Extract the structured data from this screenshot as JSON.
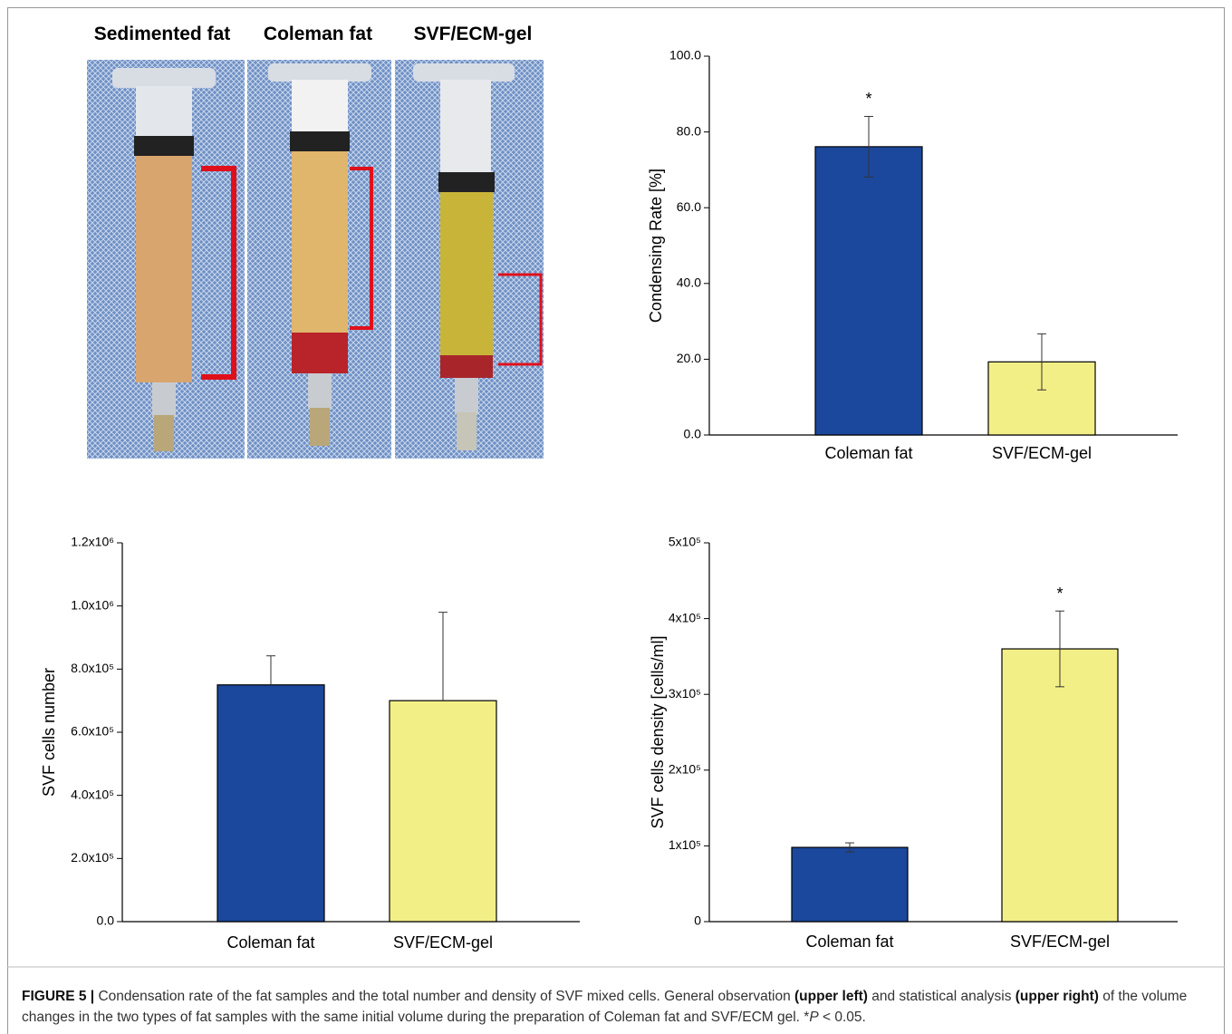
{
  "photo": {
    "labels": [
      "Sedimented fat",
      "Coleman fat",
      "SVF/ECM-gel"
    ]
  },
  "chart_data": [
    {
      "type": "bar",
      "ylabel": "Condensing Rate [%]",
      "categories": [
        "Coleman fat",
        "SVF/ECM-gel"
      ],
      "values": [
        76.1,
        19.3
      ],
      "errors": [
        8.0,
        7.4
      ],
      "error_direction": "both",
      "colors": [
        "#1b489c",
        "#f3ef87"
      ],
      "markers": [
        "*",
        null
      ],
      "ylim": [
        0,
        100
      ],
      "yticks": [
        {
          "value": 0,
          "label": "0.0"
        },
        {
          "value": 20,
          "label": "20.0"
        },
        {
          "value": 40,
          "label": "40.0"
        },
        {
          "value": 60,
          "label": "60.0"
        },
        {
          "value": 80,
          "label": "80.0"
        },
        {
          "value": 100,
          "label": "100.0"
        }
      ]
    },
    {
      "type": "bar",
      "ylabel": "SVF cells number",
      "categories": [
        "Coleman fat",
        "SVF/ECM-gel"
      ],
      "values": [
        750000,
        700000
      ],
      "errors": [
        92000,
        280000
      ],
      "error_direction": "up",
      "colors": [
        "#1b489c",
        "#f3ef87"
      ],
      "markers": [
        null,
        null
      ],
      "ylim": [
        0,
        1200000
      ],
      "yticks": [
        {
          "value": 0,
          "label": "0.0"
        },
        {
          "value": 200000,
          "label": "2.0x10⁵"
        },
        {
          "value": 400000,
          "label": "4.0x10⁵"
        },
        {
          "value": 600000,
          "label": "6.0x10⁵"
        },
        {
          "value": 800000,
          "label": "8.0x10⁵"
        },
        {
          "value": 1000000,
          "label": "1.0x10⁶"
        },
        {
          "value": 1200000,
          "label": "1.2x10⁶"
        }
      ]
    },
    {
      "type": "bar",
      "ylabel": "SVF cells density [cells/ml]",
      "categories": [
        "Coleman fat",
        "SVF/ECM-gel"
      ],
      "values": [
        98000,
        360000
      ],
      "errors": [
        6000,
        50000
      ],
      "error_direction": "both",
      "colors": [
        "#1b489c",
        "#f3ef87"
      ],
      "markers": [
        null,
        "*"
      ],
      "ylim": [
        0,
        500000
      ],
      "yticks": [
        0,
        {
          "value": 100000,
          "label": "1x10⁵"
        },
        {
          "value": 200000,
          "label": "2x10⁵"
        },
        {
          "value": 300000,
          "label": "3x10⁵"
        },
        {
          "value": 400000,
          "label": "4x10⁵"
        },
        {
          "value": 500000,
          "label": "5x10⁵"
        }
      ]
    }
  ],
  "caption": {
    "runs": [
      {
        "text": "FIGURE 5 |",
        "bold": true
      },
      {
        "text": " Condensation rate of the fat samples and the total number and density of SVF mixed cells. General observation "
      },
      {
        "text": "(upper left)",
        "bold": true
      },
      {
        "text": " and statistical analysis "
      },
      {
        "text": "(upper right)",
        "bold": true
      },
      {
        "text": " of the volume changes in the two types of fat samples with the same initial volume during the preparation of Coleman fat and SVF/ECM gel. *"
      },
      {
        "text": "P",
        "italic": true
      },
      {
        "text": " < 0.05."
      }
    ]
  }
}
